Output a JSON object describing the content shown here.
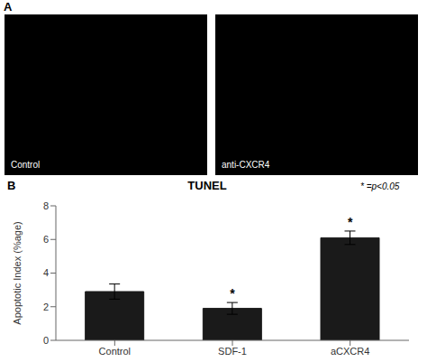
{
  "chart_data": {
    "type": "bar",
    "title": "TUNEL",
    "panel_labels": [
      "A",
      "B"
    ],
    "image_labels": [
      "Control",
      "anti-CXCR4"
    ],
    "annotation": "* =p<0.05",
    "categories": [
      "Control",
      "SDF-1",
      "aCXCR4"
    ],
    "values": [
      2.9,
      1.9,
      6.1
    ],
    "errors": [
      0.45,
      0.35,
      0.4
    ],
    "significance": [
      null,
      "*",
      "*"
    ],
    "color": "#1a1a1a",
    "ylabel": "Apoptotic Index (%age)",
    "ylim": [
      0,
      8
    ],
    "yticks": [
      0,
      2,
      4,
      6,
      8
    ],
    "grid": false
  }
}
